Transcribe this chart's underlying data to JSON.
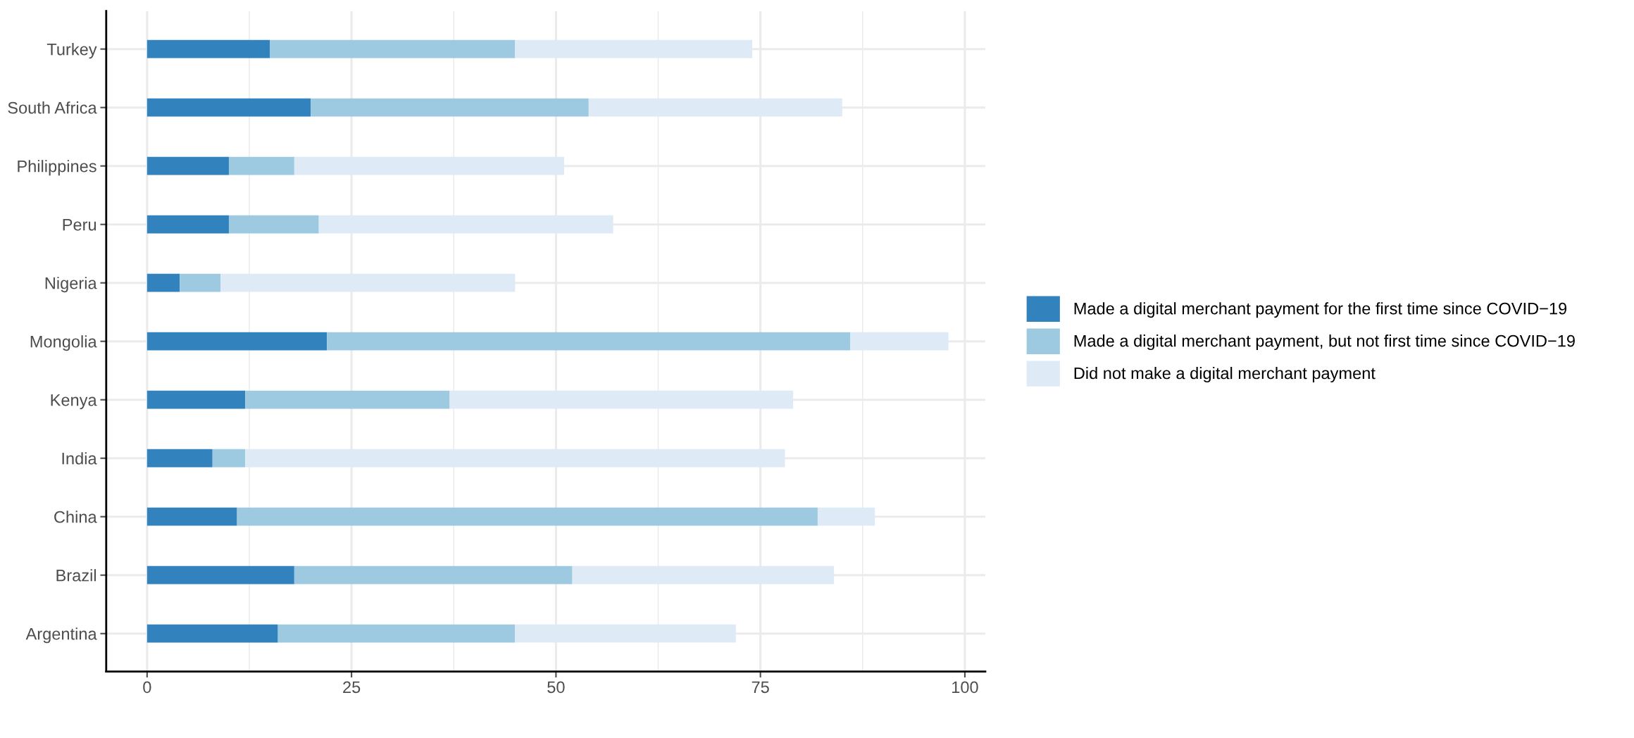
{
  "chart_data": {
    "type": "bar",
    "orientation": "horizontal",
    "stacked": true,
    "categories": [
      "Turkey",
      "South Africa",
      "Philippines",
      "Peru",
      "Nigeria",
      "Mongolia",
      "Kenya",
      "India",
      "China",
      "Brazil",
      "Argentina"
    ],
    "series": [
      {
        "name": "Made a digital merchant payment for the first time since COVID−19",
        "color": "#3182bd",
        "values": [
          15,
          20,
          10,
          10,
          4,
          22,
          12,
          8,
          11,
          18,
          16
        ]
      },
      {
        "name": "Made a digital merchant payment, but not first time since COVID−19",
        "color": "#9ecae1",
        "values": [
          30,
          34,
          8,
          11,
          5,
          64,
          25,
          4,
          71,
          34,
          29
        ]
      },
      {
        "name": "Did not make a digital merchant payment",
        "color": "#deebf7",
        "values": [
          29,
          31,
          33,
          36,
          36,
          12,
          42,
          66,
          7,
          32,
          27
        ]
      }
    ],
    "xlim": [
      -5,
      102.5
    ],
    "xticks": [
      0,
      25,
      50,
      75,
      100
    ],
    "grid": true,
    "legend": "right"
  }
}
